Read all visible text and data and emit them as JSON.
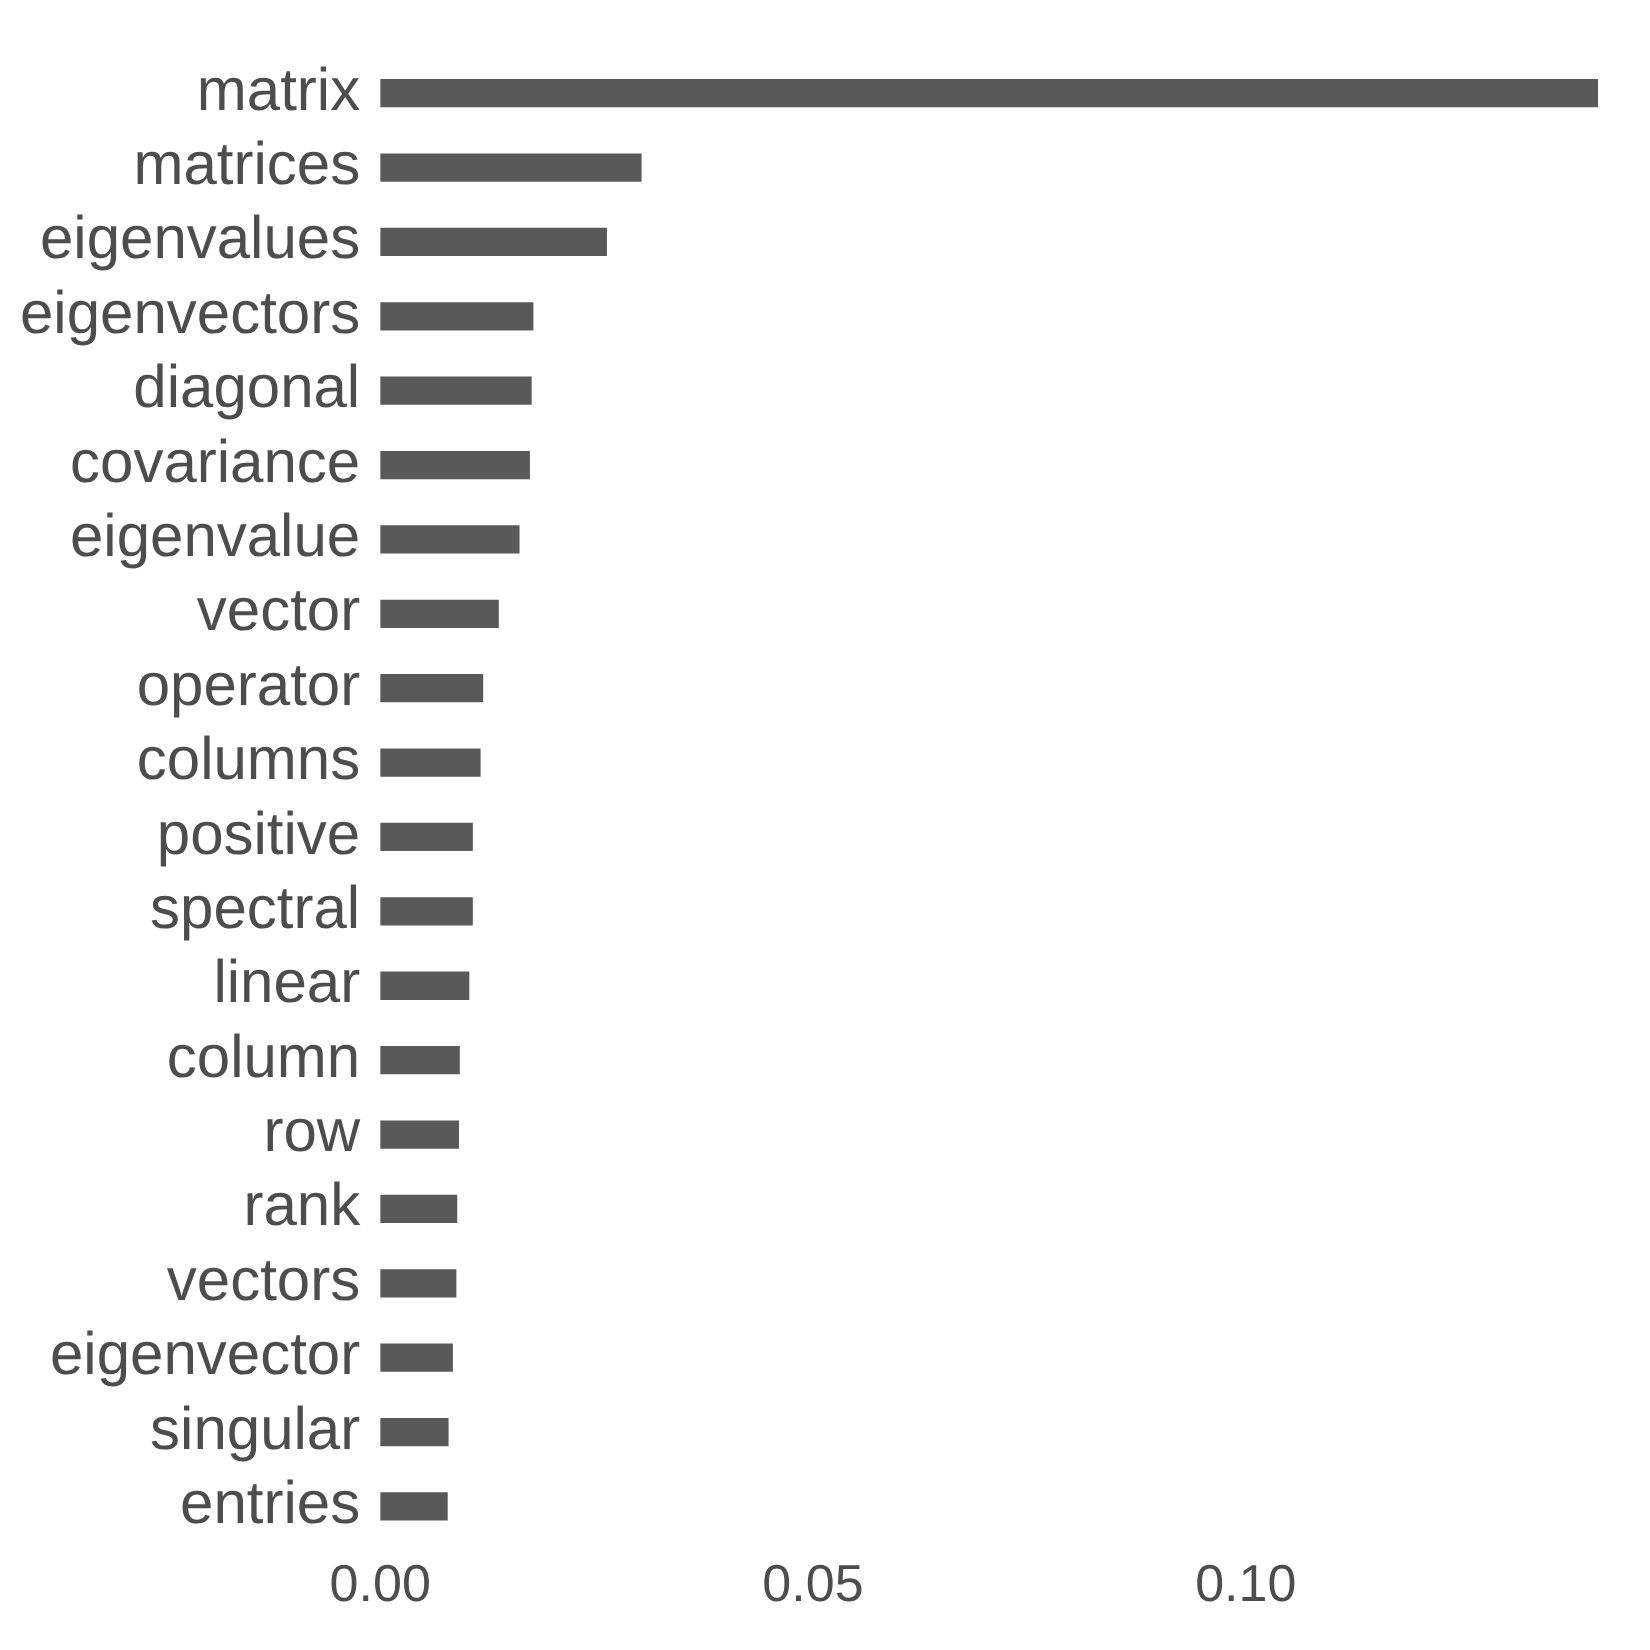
{
  "chart_data": {
    "type": "bar",
    "orientation": "horizontal",
    "categories": [
      "matrix",
      "matrices",
      "eigenvalues",
      "eigenvectors",
      "diagonal",
      "covariance",
      "eigenvalue",
      "vector",
      "operator",
      "columns",
      "positive",
      "spectral",
      "linear",
      "column",
      "row",
      "rank",
      "vectors",
      "eigenvector",
      "singular",
      "entries"
    ],
    "values": [
      0.1407,
      0.0302,
      0.0262,
      0.0177,
      0.0175,
      0.0173,
      0.0161,
      0.0137,
      0.0119,
      0.0116,
      0.0107,
      0.0107,
      0.0103,
      0.0092,
      0.0091,
      0.0089,
      0.0088,
      0.0084,
      0.0079,
      0.0078
    ],
    "color": "#595959",
    "xlim": [
      0,
      0.1407
    ],
    "xticks": [
      {
        "value": 0,
        "label": "0.00"
      },
      {
        "value": 0.05,
        "label": "0.05"
      },
      {
        "value": 0.1,
        "label": "0.10"
      }
    ],
    "grid": false,
    "legend": false
  }
}
